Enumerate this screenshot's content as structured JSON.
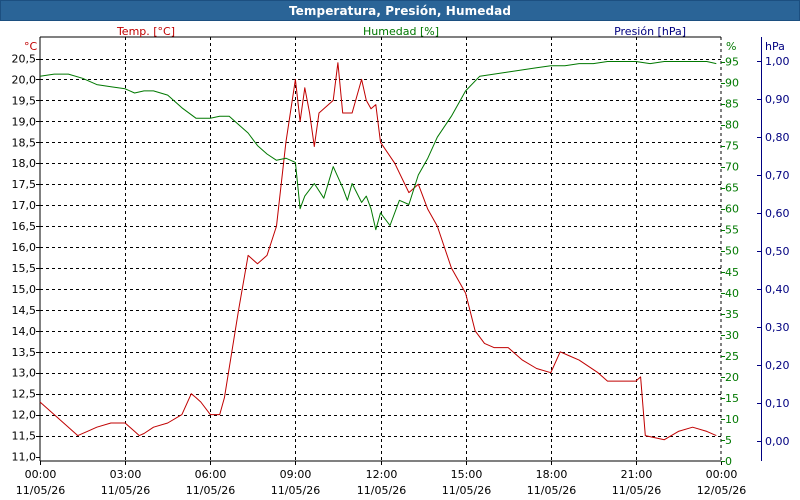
{
  "window": {
    "title": "Temperatura, Presión, Humedad"
  },
  "colors": {
    "title_bar": "#2a6497",
    "temp": "#c00000",
    "humidity": "#007800",
    "pressure": "#000080",
    "grid": "#000000",
    "axis_text": "#000000"
  },
  "chart_data": {
    "type": "line",
    "title": "Temperatura, Presión, Humedad",
    "x_ticks": [
      {
        "time": "00:00",
        "date": "11/05/26"
      },
      {
        "time": "03:00",
        "date": "11/05/26"
      },
      {
        "time": "06:00",
        "date": "11/05/26"
      },
      {
        "time": "09:00",
        "date": "11/05/26"
      },
      {
        "time": "12:00",
        "date": "11/05/26"
      },
      {
        "time": "15:00",
        "date": "11/05/26"
      },
      {
        "time": "18:00",
        "date": "11/05/26"
      },
      {
        "time": "21:00",
        "date": "11/05/26"
      },
      {
        "time": "00:00",
        "date": "12/05/26"
      }
    ],
    "x_range": [
      "11/05/26 00:00",
      "12/05/26 00:00"
    ],
    "grid": true,
    "axes": {
      "temp": {
        "label": "Temp. [°C]",
        "unit": "°C",
        "range": [
          11.0,
          20.5
        ],
        "ticks": [
          "20,5",
          "20,0",
          "19,5",
          "19,0",
          "18,5",
          "18,0",
          "17,5",
          "17,0",
          "16,5",
          "16,0",
          "15,5",
          "15,0",
          "14,5",
          "14,0",
          "13,5",
          "13,0",
          "12,5",
          "12,0",
          "11,5",
          "11,0"
        ],
        "tick_values": [
          20.5,
          20.0,
          19.5,
          19.0,
          18.5,
          18.0,
          17.5,
          17.0,
          16.5,
          16.0,
          15.5,
          15.0,
          14.5,
          14.0,
          13.5,
          13.0,
          12.5,
          12.0,
          11.5,
          11.0
        ]
      },
      "humidity": {
        "label": "Humedad [%]",
        "unit": "%",
        "range": [
          0,
          95
        ],
        "ticks": [
          "95",
          "90",
          "85",
          "80",
          "75",
          "70",
          "65",
          "60",
          "55",
          "50",
          "45",
          "40",
          "35",
          "30",
          "25",
          "20",
          "15",
          "10",
          "5",
          "0"
        ],
        "tick_values": [
          95,
          90,
          85,
          80,
          75,
          70,
          65,
          60,
          55,
          50,
          45,
          40,
          35,
          30,
          25,
          20,
          15,
          10,
          5,
          0
        ]
      },
      "pressure": {
        "label": "Presión [hPa]",
        "unit": "hPa",
        "range": [
          -0.05,
          1.0
        ],
        "ticks": [
          "1,00",
          "0,90",
          "0,80",
          "0,70",
          "0,60",
          "0,50",
          "0,40",
          "0,30",
          "0,20",
          "0,10",
          "0,00"
        ],
        "tick_values": [
          1.0,
          0.9,
          0.8,
          0.7,
          0.6,
          0.5,
          0.4,
          0.3,
          0.2,
          0.1,
          0.0
        ]
      }
    },
    "series": [
      {
        "name": "Temp. [°C]",
        "axis": "temp",
        "x": [
          "00:00",
          "00:30",
          "01:00",
          "01:20",
          "01:40",
          "02:00",
          "02:30",
          "03:00",
          "03:20",
          "03:30",
          "03:40",
          "04:00",
          "04:30",
          "05:00",
          "05:20",
          "05:30",
          "05:40",
          "06:00",
          "06:20",
          "06:30",
          "07:00",
          "07:20",
          "07:40",
          "08:00",
          "08:20",
          "08:40",
          "09:00",
          "09:10",
          "09:20",
          "09:30",
          "09:40",
          "09:50",
          "10:00",
          "10:20",
          "10:30",
          "10:40",
          "11:00",
          "11:20",
          "11:30",
          "11:40",
          "11:50",
          "12:00",
          "12:30",
          "13:00",
          "13:20",
          "13:40",
          "14:00",
          "14:30",
          "15:00",
          "15:20",
          "15:40",
          "16:00",
          "16:30",
          "17:00",
          "17:30",
          "18:00",
          "18:20",
          "18:40",
          "19:00",
          "19:40",
          "20:00",
          "20:30",
          "21:00",
          "21:10",
          "21:20",
          "22:00",
          "22:30",
          "23:00",
          "23:30",
          "23:50"
        ],
        "y": [
          12.3,
          12.0,
          11.7,
          11.5,
          11.6,
          11.7,
          11.8,
          11.8,
          11.6,
          11.5,
          11.55,
          11.7,
          11.8,
          12.0,
          12.5,
          12.4,
          12.3,
          12.0,
          12.0,
          12.4,
          14.5,
          15.8,
          15.6,
          15.8,
          16.5,
          18.5,
          20.0,
          19.0,
          19.8,
          19.2,
          18.4,
          19.2,
          19.3,
          19.5,
          20.4,
          19.2,
          19.2,
          20.0,
          19.5,
          19.3,
          19.4,
          18.5,
          18.0,
          17.3,
          17.5,
          16.9,
          16.5,
          15.5,
          14.9,
          14.0,
          13.7,
          13.6,
          13.6,
          13.3,
          13.1,
          13.0,
          13.5,
          13.4,
          13.3,
          13.0,
          12.8,
          12.8,
          12.8,
          12.9,
          11.5,
          11.4,
          11.6,
          11.7,
          11.6,
          11.5
        ]
      },
      {
        "name": "Humedad [%]",
        "axis": "humidity",
        "x": [
          "00:00",
          "00:30",
          "01:00",
          "01:30",
          "02:00",
          "02:30",
          "03:00",
          "03:20",
          "03:40",
          "04:00",
          "04:30",
          "05:00",
          "05:30",
          "06:00",
          "06:20",
          "06:40",
          "07:00",
          "07:20",
          "07:40",
          "08:00",
          "08:20",
          "08:40",
          "09:00",
          "09:10",
          "09:20",
          "09:40",
          "10:00",
          "10:20",
          "10:40",
          "10:50",
          "11:00",
          "11:20",
          "11:30",
          "11:40",
          "11:50",
          "12:00",
          "12:20",
          "12:40",
          "13:00",
          "13:20",
          "13:40",
          "14:00",
          "14:30",
          "15:00",
          "15:30",
          "16:00",
          "16:30",
          "17:00",
          "17:30",
          "18:00",
          "18:30",
          "19:00",
          "19:30",
          "20:00",
          "20:30",
          "21:00",
          "21:30",
          "22:00",
          "22:30",
          "23:00",
          "23:30",
          "23:50"
        ],
        "y": [
          91.5,
          92.0,
          92.0,
          91.0,
          89.5,
          89.0,
          88.5,
          87.5,
          88.0,
          88.0,
          87.0,
          84.0,
          81.5,
          81.5,
          82.0,
          82.0,
          80.0,
          78.0,
          75.0,
          73.0,
          71.5,
          72.0,
          71.0,
          60.0,
          63.0,
          66.0,
          62.5,
          70.0,
          65.0,
          62.0,
          66.0,
          61.5,
          63.0,
          60.0,
          55.0,
          59.0,
          56.0,
          62.0,
          61.0,
          68.0,
          72.0,
          77.0,
          82.0,
          88.0,
          91.5,
          92.0,
          92.5,
          93.0,
          93.5,
          94.0,
          94.0,
          94.5,
          94.5,
          95.0,
          95.0,
          95.0,
          94.5,
          95.0,
          95.0,
          95.0,
          95.0,
          94.5
        ]
      }
    ]
  }
}
